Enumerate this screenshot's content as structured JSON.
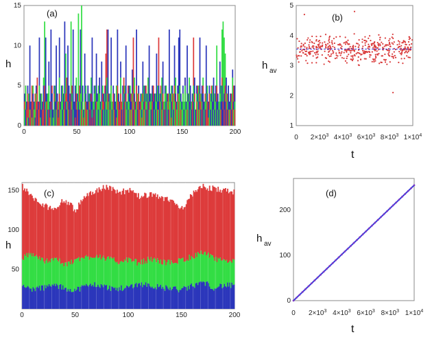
{
  "figure": {
    "palette": {
      "red": "#dd3b3b",
      "green": "#33dd44",
      "blue": "#2b36bb",
      "dots": "#d93a3a",
      "avgline": "#3a3ad9",
      "purple_dots": "#7b39c8"
    }
  },
  "chart_data": [
    {
      "id": "a",
      "type": "bar",
      "panel_label": "(a)",
      "ylabel": "h",
      "xlabel": "",
      "xlim": [
        0,
        200
      ],
      "ylim": [
        0,
        15
      ],
      "xticks": [
        0,
        50,
        100,
        150,
        200
      ],
      "xtick_labels": [
        "0",
        "50",
        "100",
        "150",
        "200"
      ],
      "yticks": [
        0,
        5,
        10,
        15
      ],
      "ytick_labels": [
        "0",
        "5",
        "10",
        "15"
      ],
      "series": [
        {
          "name": "red",
          "values": [
            3,
            5,
            2,
            4,
            3,
            1,
            2,
            5,
            3,
            2,
            4,
            3,
            6,
            2,
            3,
            1,
            4,
            2,
            3,
            5,
            2,
            3,
            4,
            2,
            1,
            3,
            5,
            2,
            4,
            3,
            2,
            3,
            1,
            4,
            2,
            3,
            5,
            2,
            3,
            4,
            6,
            3,
            2,
            4,
            3,
            5,
            2,
            3,
            1,
            4,
            2,
            3,
            5,
            4,
            2,
            3,
            1,
            4,
            3,
            2,
            5,
            3,
            2,
            4,
            1,
            3,
            2,
            5,
            3,
            4,
            2,
            6,
            3,
            2,
            4,
            3,
            5,
            9,
            12,
            4,
            3,
            2,
            5,
            3,
            4,
            2,
            3,
            1,
            5,
            3,
            2,
            4,
            3,
            2,
            6,
            3,
            4,
            2,
            5,
            3,
            2,
            4,
            3,
            11,
            3,
            2,
            5,
            3,
            4,
            2,
            3,
            1,
            4,
            2,
            3,
            5,
            2,
            6,
            3,
            4,
            2,
            3,
            5,
            2,
            4,
            3,
            2,
            11,
            3,
            5,
            2,
            4,
            3,
            2,
            5,
            3,
            4,
            2,
            3,
            1,
            4,
            2,
            5,
            3,
            2,
            4,
            3,
            5,
            2,
            3,
            4,
            2,
            6,
            3,
            2,
            4,
            3,
            5,
            2,
            3,
            11,
            4,
            2,
            3,
            5,
            2,
            4,
            3,
            2,
            5,
            3,
            4,
            2,
            3,
            1,
            4,
            2,
            5,
            3,
            2,
            4,
            3,
            5,
            2,
            3,
            4,
            2,
            6,
            3,
            2,
            5,
            3,
            4,
            2,
            3,
            2,
            4,
            3,
            5,
            2
          ]
        },
        {
          "name": "green",
          "values": [
            2,
            5,
            3,
            1,
            4,
            2,
            3,
            1,
            5,
            2,
            3,
            4,
            2,
            3,
            5,
            1,
            4,
            3,
            6,
            13,
            3,
            2,
            4,
            5,
            3,
            2,
            4,
            1,
            3,
            5,
            2,
            4,
            3,
            6,
            2,
            3,
            5,
            2,
            4,
            9,
            3,
            2,
            5,
            3,
            13,
            4,
            2,
            3,
            5,
            6,
            3,
            14,
            3,
            4,
            15,
            3,
            2,
            4,
            5,
            3,
            2,
            4,
            3,
            6,
            2,
            3,
            4,
            5,
            2,
            3,
            5,
            4,
            2,
            3,
            5,
            2,
            4,
            3,
            6,
            2,
            3,
            4,
            5,
            3,
            2,
            4,
            3,
            5,
            2,
            4,
            3,
            6,
            2,
            3,
            4,
            5,
            3,
            2,
            4,
            3,
            5,
            2,
            4,
            3,
            6,
            2,
            3,
            4,
            5,
            3,
            2,
            4,
            3,
            5,
            2,
            4,
            3,
            6,
            2,
            3,
            4,
            5,
            3,
            2,
            4,
            3,
            5,
            2,
            4,
            3,
            6,
            2,
            3,
            4,
            5,
            3,
            2,
            4,
            3,
            5,
            2,
            4,
            3,
            6,
            2,
            3,
            4,
            5,
            3,
            2,
            4,
            3,
            5,
            2,
            4,
            3,
            6,
            2,
            3,
            4,
            5,
            3,
            2,
            4,
            3,
            5,
            2,
            4,
            3,
            6,
            2,
            3,
            4,
            5,
            3,
            2,
            4,
            3,
            5,
            2,
            4,
            3,
            10,
            2,
            3,
            4,
            5,
            12,
            13,
            11,
            9,
            4,
            3,
            5,
            2,
            4,
            3,
            6,
            2,
            3
          ]
        },
        {
          "name": "blue",
          "values": [
            4,
            2,
            3,
            5,
            1,
            10,
            3,
            2,
            4,
            3,
            1,
            5,
            2,
            3,
            11,
            4,
            2,
            3,
            5,
            3,
            11,
            4,
            2,
            8,
            3,
            12,
            4,
            2,
            5,
            3,
            10,
            4,
            2,
            11,
            3,
            5,
            2,
            4,
            13,
            3,
            2,
            10,
            5,
            3,
            4,
            2,
            12,
            3,
            5,
            2,
            4,
            3,
            2,
            12,
            3,
            5,
            2,
            9,
            4,
            3,
            5,
            2,
            4,
            3,
            11,
            2,
            5,
            3,
            9,
            4,
            2,
            6,
            3,
            8,
            2,
            4,
            3,
            5,
            2,
            12,
            4,
            3,
            11,
            2,
            5,
            4,
            3,
            2,
            12,
            4,
            3,
            8,
            2,
            5,
            3,
            4,
            10,
            3,
            2,
            5,
            4,
            3,
            7,
            2,
            4,
            3,
            12,
            2,
            5,
            3,
            4,
            2,
            8,
            3,
            5,
            2,
            4,
            3,
            10,
            4,
            2,
            5,
            3,
            4,
            2,
            9,
            3,
            5,
            2,
            4,
            3,
            8,
            2,
            5,
            3,
            4,
            2,
            12,
            4,
            3,
            5,
            2,
            10,
            4,
            3,
            5,
            11,
            12,
            4,
            3,
            5,
            2,
            6,
            3,
            10,
            4,
            3,
            5,
            2,
            4,
            3,
            6,
            2,
            5,
            4,
            3,
            11,
            2,
            5,
            4,
            3,
            2,
            10,
            4,
            3,
            5,
            2,
            4,
            3,
            6,
            2,
            5,
            3,
            4,
            2,
            8,
            3,
            5,
            2,
            4,
            3,
            6,
            2,
            5,
            3,
            4,
            2,
            7,
            3,
            5
          ]
        }
      ]
    },
    {
      "id": "b",
      "type": "scatter",
      "panel_label": "(b)",
      "ylabel": "h",
      "ylabel_sub": "av",
      "xlabel": "t",
      "xlim": [
        0,
        10000
      ],
      "ylim": [
        1,
        5
      ],
      "yticks": [
        1,
        2,
        3,
        4,
        5
      ],
      "ytick_labels": [
        "1",
        "2",
        "3",
        "4",
        "5"
      ],
      "xticks": [
        0,
        2000,
        4000,
        6000,
        8000,
        10000
      ],
      "xtick_labels": [
        {
          "base": "0",
          "exp": ""
        },
        {
          "base": "2×10",
          "exp": "3"
        },
        {
          "base": "4×10",
          "exp": "3"
        },
        {
          "base": "6×10",
          "exp": "3"
        },
        {
          "base": "8×10",
          "exp": "3"
        },
        {
          "base": "1×10",
          "exp": "4"
        }
      ],
      "mean": 3.55,
      "point_count": 450,
      "spread": 0.35,
      "outliers": [
        {
          "x": 5000,
          "y": 4.8
        },
        {
          "x": 8300,
          "y": 2.1
        },
        {
          "x": 700,
          "y": 4.7
        }
      ]
    },
    {
      "id": "c",
      "type": "area",
      "stacked": true,
      "panel_label": "(c)",
      "ylabel": "h",
      "xlabel": "",
      "xlim": [
        0,
        200
      ],
      "ylim": [
        0,
        160
      ],
      "xticks": [
        0,
        50,
        100,
        150,
        200
      ],
      "xtick_labels": [
        "0",
        "50",
        "100",
        "150",
        "200"
      ],
      "yticks": [
        50,
        100,
        150
      ],
      "ytick_labels": [
        "50",
        "100",
        "150"
      ],
      "x": [
        0,
        10,
        20,
        30,
        40,
        50,
        60,
        70,
        80,
        90,
        100,
        110,
        120,
        130,
        140,
        150,
        160,
        170,
        180,
        190,
        200
      ],
      "series": [
        {
          "name": "blue",
          "values": [
            28,
            25,
            27,
            30,
            26,
            24,
            29,
            31,
            27,
            25,
            28,
            32,
            30,
            27,
            26,
            24,
            29,
            34,
            27,
            30,
            29
          ]
        },
        {
          "name": "green",
          "values": [
            65,
            70,
            60,
            65,
            55,
            62,
            65,
            68,
            63,
            60,
            62,
            58,
            63,
            60,
            58,
            62,
            66,
            72,
            63,
            60,
            62
          ]
        },
        {
          "name": "red",
          "values": [
            155,
            140,
            130,
            128,
            138,
            125,
            145,
            150,
            155,
            148,
            150,
            142,
            145,
            140,
            138,
            128,
            145,
            155,
            152,
            150,
            148
          ]
        }
      ]
    },
    {
      "id": "d",
      "type": "line",
      "panel_label": "(d)",
      "ylabel": "h",
      "ylabel_sub": "av",
      "xlabel": "t",
      "xlim": [
        0,
        10000
      ],
      "ylim": [
        0,
        270
      ],
      "yticks": [
        0,
        100,
        200
      ],
      "ytick_labels": [
        "0",
        "100",
        "200"
      ],
      "xticks": [
        0,
        2000,
        4000,
        6000,
        8000,
        10000
      ],
      "xtick_labels": [
        {
          "base": "0",
          "exp": ""
        },
        {
          "base": "2×10",
          "exp": "3"
        },
        {
          "base": "4×10",
          "exp": "3"
        },
        {
          "base": "6×10",
          "exp": "3"
        },
        {
          "base": "8×10",
          "exp": "3"
        },
        {
          "base": "1×10",
          "exp": "4"
        }
      ],
      "x": [
        0,
        10000
      ],
      "y": [
        0,
        255
      ]
    }
  ]
}
